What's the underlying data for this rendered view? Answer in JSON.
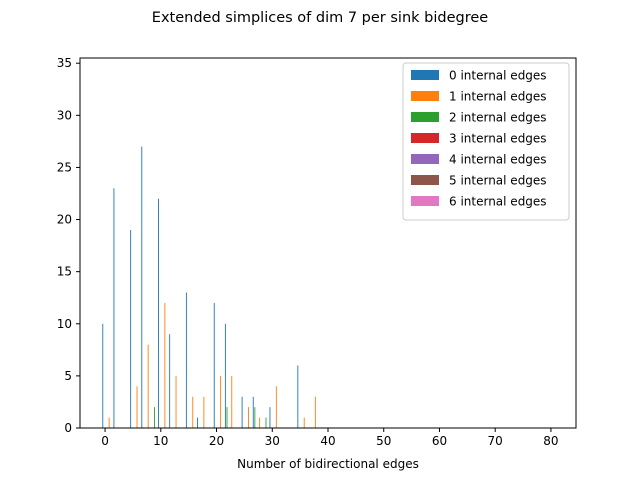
{
  "chart_data": {
    "type": "bar",
    "title": "Extended simplices of dim 7 per sink bidegree",
    "xlabel": "Number of bidirectional edges",
    "ylabel": "",
    "xlim": [
      -4.5,
      84.5
    ],
    "ylim": [
      0,
      35.5
    ],
    "xticks": [
      0,
      10,
      20,
      30,
      40,
      50,
      60,
      70,
      80
    ],
    "yticks": [
      0,
      5,
      10,
      15,
      20,
      25,
      30,
      35
    ],
    "grid": false,
    "legend_position": "top-right",
    "series": [
      {
        "name": "0 internal edges",
        "color": "#1f77b4",
        "points": [
          [
            0,
            10
          ],
          [
            2,
            23
          ],
          [
            5,
            19
          ],
          [
            7,
            27
          ],
          [
            10,
            22
          ],
          [
            12,
            9
          ],
          [
            15,
            13
          ],
          [
            17,
            1
          ],
          [
            20,
            12
          ],
          [
            22,
            10
          ],
          [
            25,
            3
          ],
          [
            27,
            3
          ],
          [
            30,
            2
          ],
          [
            35,
            6
          ]
        ]
      },
      {
        "name": "1 internal edges",
        "color": "#ff7f0e",
        "points": [
          [
            1,
            1
          ],
          [
            6,
            4
          ],
          [
            8,
            8
          ],
          [
            11,
            12
          ],
          [
            13,
            5
          ],
          [
            16,
            3
          ],
          [
            18,
            3
          ],
          [
            21,
            5
          ],
          [
            23,
            5
          ],
          [
            26,
            2
          ],
          [
            28,
            1
          ],
          [
            31,
            4
          ],
          [
            36,
            1
          ],
          [
            38,
            3
          ]
        ]
      },
      {
        "name": "2 internal edges",
        "color": "#2ca02c",
        "points": [
          [
            9,
            2
          ],
          [
            22,
            2
          ],
          [
            27,
            2
          ],
          [
            29,
            1
          ]
        ]
      },
      {
        "name": "3 internal edges",
        "color": "#d62728",
        "points": []
      },
      {
        "name": "4 internal edges",
        "color": "#9467bd",
        "points": []
      },
      {
        "name": "5 internal edges",
        "color": "#8c564b",
        "points": []
      },
      {
        "name": "6 internal edges",
        "color": "#e377c2",
        "points": []
      }
    ]
  }
}
